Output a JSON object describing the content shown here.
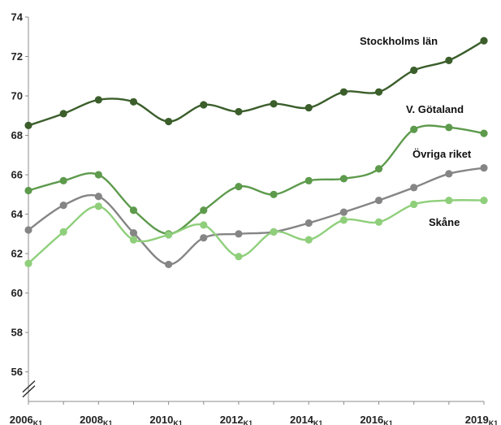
{
  "chart_data": {
    "type": "line",
    "x": [
      2006,
      2007,
      2008,
      2009,
      2010,
      2011,
      2012,
      2013,
      2014,
      2015,
      2016,
      2017,
      2018,
      2019
    ],
    "x_tick_labels": [
      {
        "year": 2006,
        "main": "2006",
        "sub": "K1"
      },
      {
        "year": 2008,
        "main": "2008",
        "sub": "K1"
      },
      {
        "year": 2010,
        "main": "2010",
        "sub": "K1"
      },
      {
        "year": 2012,
        "main": "2012",
        "sub": "K1"
      },
      {
        "year": 2014,
        "main": "2014",
        "sub": "K1"
      },
      {
        "year": 2016,
        "main": "2016",
        "sub": "K1"
      },
      {
        "year": 2019,
        "main": "2019",
        "sub": "K1"
      }
    ],
    "y_ticks": [
      56,
      58,
      60,
      62,
      64,
      66,
      68,
      70,
      72,
      74
    ],
    "ylim": [
      54.5,
      74
    ],
    "axis_break": true,
    "grid": false,
    "series": [
      {
        "name": "Stockholms län",
        "color": "#3b5e2b",
        "values": [
          68.5,
          69.1,
          69.8,
          69.7,
          68.7,
          69.55,
          69.2,
          69.6,
          69.4,
          70.2,
          70.2,
          71.3,
          71.8,
          72.8
        ]
      },
      {
        "name": "V. Götaland",
        "color": "#5d9a4c",
        "values": [
          65.2,
          65.7,
          66.0,
          64.2,
          63.0,
          64.2,
          65.4,
          65.0,
          65.7,
          65.8,
          66.3,
          68.3,
          68.4,
          68.1
        ]
      },
      {
        "name": "Övriga riket",
        "color": "#858585",
        "values": [
          63.2,
          64.45,
          64.9,
          63.05,
          61.45,
          62.8,
          63.0,
          63.1,
          63.55,
          64.1,
          64.7,
          65.35,
          66.05,
          66.35
        ]
      },
      {
        "name": "Skåne",
        "color": "#8fcf7b",
        "values": [
          61.5,
          63.1,
          64.4,
          62.7,
          62.95,
          63.45,
          61.85,
          63.1,
          62.7,
          63.7,
          63.6,
          64.5,
          64.7,
          64.7
        ]
      }
    ]
  }
}
